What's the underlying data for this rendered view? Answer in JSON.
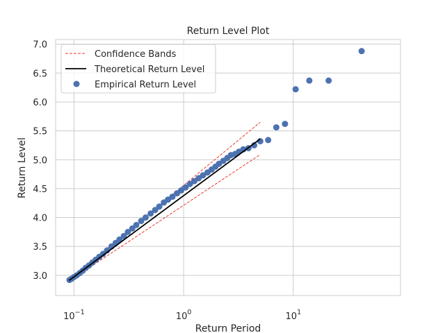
{
  "chart_data": {
    "type": "scatter",
    "title": "Return Level Plot",
    "xlabel": "Return Period",
    "ylabel": "Return Level",
    "xscale": "log",
    "xlim": [
      0.068,
      95
    ],
    "ylim": [
      2.65,
      7.08
    ],
    "grid": true,
    "legend_position": "top-left",
    "x_ticks": [
      {
        "value": 0.1,
        "base": "10",
        "exp": "−1"
      },
      {
        "value": 1,
        "base": "10",
        "exp": "0"
      },
      {
        "value": 10,
        "base": "10",
        "exp": "1"
      }
    ],
    "y_ticks": [
      "3.0",
      "3.5",
      "4.0",
      "4.5",
      "5.0",
      "5.5",
      "6.0",
      "6.5",
      "7.0"
    ],
    "series": [
      {
        "name": "Confidence Bands",
        "kind": "band",
        "color": "#e8392f",
        "upper": {
          "x": [
            0.09,
            5.0
          ],
          "y": [
            2.92,
            5.65
          ]
        },
        "lower": {
          "x": [
            0.09,
            5.0
          ],
          "y": [
            2.9,
            5.09
          ]
        }
      },
      {
        "name": "Theoretical Return Level",
        "kind": "line",
        "color": "#000000",
        "x": [
          0.09,
          5.0
        ],
        "y": [
          2.91,
          5.36
        ]
      },
      {
        "name": "Empirical Return Level",
        "kind": "scatter",
        "color": "#4c72b0",
        "x": [
          0.091,
          0.095,
          0.1,
          0.106,
          0.113,
          0.12,
          0.128,
          0.137,
          0.147,
          0.158,
          0.17,
          0.184,
          0.2,
          0.22,
          0.24,
          0.26,
          0.285,
          0.31,
          0.34,
          0.37,
          0.41,
          0.45,
          0.5,
          0.55,
          0.6,
          0.66,
          0.72,
          0.79,
          0.87,
          0.95,
          1.04,
          1.14,
          1.25,
          1.37,
          1.5,
          1.65,
          1.8,
          1.95,
          2.1,
          2.3,
          2.5,
          2.7,
          2.95,
          3.2,
          3.5,
          3.9,
          4.4,
          5.0,
          5.9,
          7.0,
          8.4,
          10.5,
          14.0,
          21.0,
          42.0
        ],
        "y": [
          2.92,
          2.94,
          2.97,
          3.0,
          3.04,
          3.08,
          3.13,
          3.17,
          3.22,
          3.27,
          3.32,
          3.37,
          3.43,
          3.5,
          3.56,
          3.62,
          3.68,
          3.75,
          3.81,
          3.87,
          3.94,
          4.0,
          4.07,
          4.13,
          4.19,
          4.26,
          4.31,
          4.36,
          4.42,
          4.47,
          4.52,
          4.58,
          4.63,
          4.68,
          4.73,
          4.78,
          4.83,
          4.88,
          4.93,
          4.98,
          5.03,
          5.08,
          5.1,
          5.14,
          5.18,
          5.2,
          5.25,
          5.32,
          5.34,
          5.56,
          5.62,
          6.22,
          6.37,
          6.37,
          6.88
        ]
      }
    ]
  }
}
